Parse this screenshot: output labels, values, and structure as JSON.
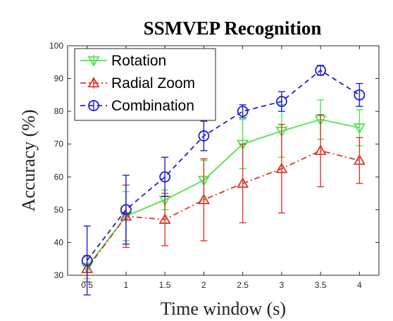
{
  "chart_data": {
    "type": "line",
    "title": "SSMVEP Recognition",
    "xlabel": "Time window (s)",
    "ylabel": "Accuracy (%)",
    "x": [
      0.5,
      1,
      1.5,
      2,
      2.5,
      3,
      3.5,
      4
    ],
    "xticks": [
      "0.5",
      "1",
      "1.5",
      "2",
      "2.5",
      "3",
      "3.5",
      "4"
    ],
    "xlim": [
      0.25,
      4.25
    ],
    "ylim": [
      30,
      100
    ],
    "yticks": [
      "30",
      "40",
      "50",
      "60",
      "70",
      "80",
      "90",
      "100"
    ],
    "grid": false,
    "legend_position": "top-left",
    "series": [
      {
        "name": "Rotation",
        "color": "#4ee44e",
        "line_style": "solid",
        "marker": "triangle-down",
        "values": [
          32.5,
          48,
          53,
          59,
          70,
          74,
          77.5,
          75
        ],
        "error": [
          3.5,
          7.5,
          3,
          6,
          7.5,
          8,
          6,
          5.5
        ]
      },
      {
        "name": "Radial Zoom",
        "color": "#d93a2b",
        "line_style": "dash-dot",
        "marker": "triangle-up",
        "values": [
          32,
          48,
          47,
          53,
          58,
          62.5,
          68,
          65
        ],
        "error": [
          4,
          9.5,
          8,
          12.5,
          12,
          13.5,
          11,
          7
        ]
      },
      {
        "name": "Combination",
        "color": "#1f1fd6",
        "line_style": "dashed",
        "marker": "circle",
        "values": [
          34.5,
          50,
          60,
          72.5,
          80,
          83,
          92.5,
          85
        ],
        "error": [
          10.5,
          10.5,
          6,
          4.5,
          2,
          3,
          1.5,
          3.5
        ]
      }
    ]
  }
}
